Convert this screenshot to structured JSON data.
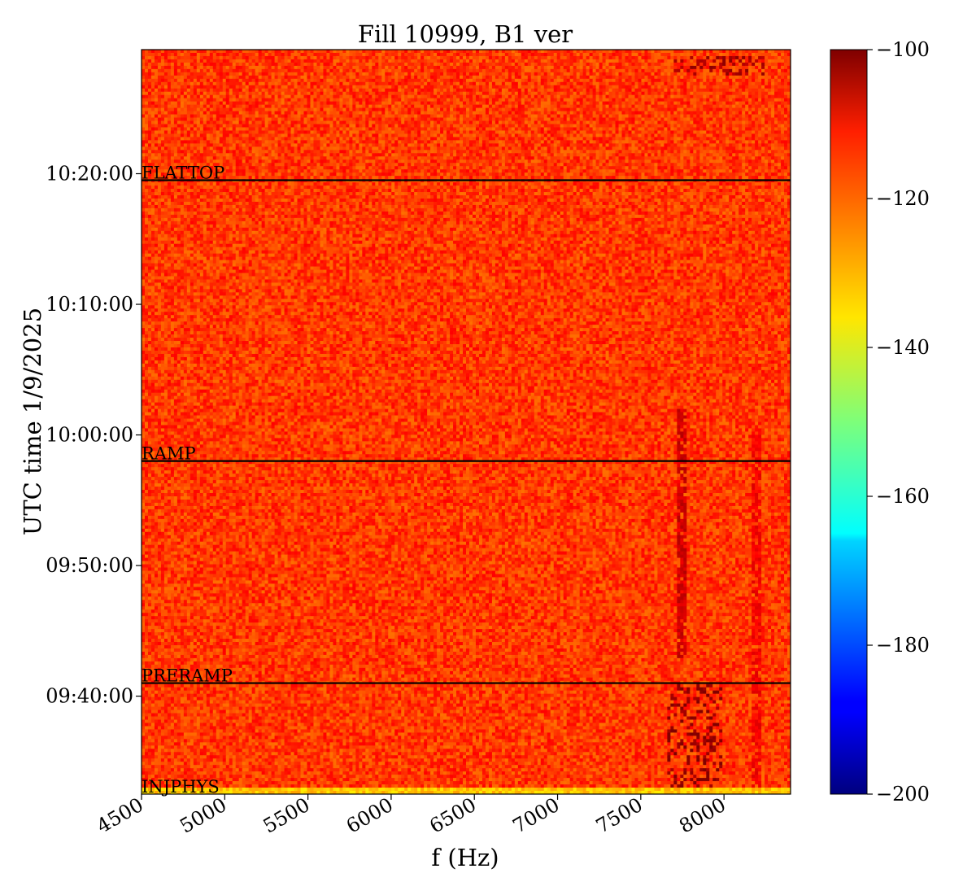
{
  "chart_data": {
    "type": "heatmap",
    "title": "Fill 10999, B1 ver",
    "xlabel": "f (Hz)",
    "ylabel": "UTC time 1/9/2025",
    "xlim": [
      4500,
      8400
    ],
    "ylim": [
      "09:32:30",
      "10:29:30"
    ],
    "x_ticks": [
      "4500",
      "5000",
      "5500",
      "6000",
      "6500",
      "7000",
      "7500",
      "8000"
    ],
    "y_ticks": [
      {
        "label": "09:40:00",
        "time": "09:40:00"
      },
      {
        "label": "09:50:00",
        "time": "09:50:00"
      },
      {
        "label": "10:00:00",
        "time": "10:00:00"
      },
      {
        "label": "10:10:00",
        "time": "10:10:00"
      },
      {
        "label": "10:20:00",
        "time": "10:20:00"
      }
    ],
    "colorbar": {
      "colormap": "jet",
      "range": [
        -200,
        -100
      ],
      "ticks": [
        "−100",
        "−120",
        "−140",
        "−160",
        "−180",
        "−200"
      ],
      "tick_values": [
        -100,
        -120,
        -140,
        -160,
        -180,
        -200
      ]
    },
    "background_level": -118,
    "phase_markers": [
      {
        "label": "INJPHYS",
        "time": "09:32:30"
      },
      {
        "label": "PRERAMP",
        "time": "09:41:00"
      },
      {
        "label": "RAMP",
        "time": "09:58:00"
      },
      {
        "label": "FLATTOP",
        "time": "10:19:30"
      }
    ],
    "features": [
      {
        "description": "band near 7750 Hz during ramp",
        "f": 7750,
        "t_start": "09:43:00",
        "t_end": "10:02:00",
        "level": -108
      },
      {
        "description": "line near 8200 Hz",
        "f": 8200,
        "t_start": "09:33:00",
        "t_end": "10:00:00",
        "level": -112
      },
      {
        "description": "bursts 7650-8000 Hz before ramp",
        "f_start": 7650,
        "f_end": 8000,
        "t_start": "09:33:00",
        "t_end": "09:41:00",
        "level": -102
      },
      {
        "description": "low-level band during injection",
        "t_start": "09:32:30",
        "t_end": "09:33:00",
        "level": -132
      },
      {
        "description": "short streaks 7700-8250 Hz at top",
        "f_start": 7700,
        "f_end": 8250,
        "t_start": "10:27:30",
        "t_end": "10:29:00",
        "level": -104
      }
    ]
  }
}
